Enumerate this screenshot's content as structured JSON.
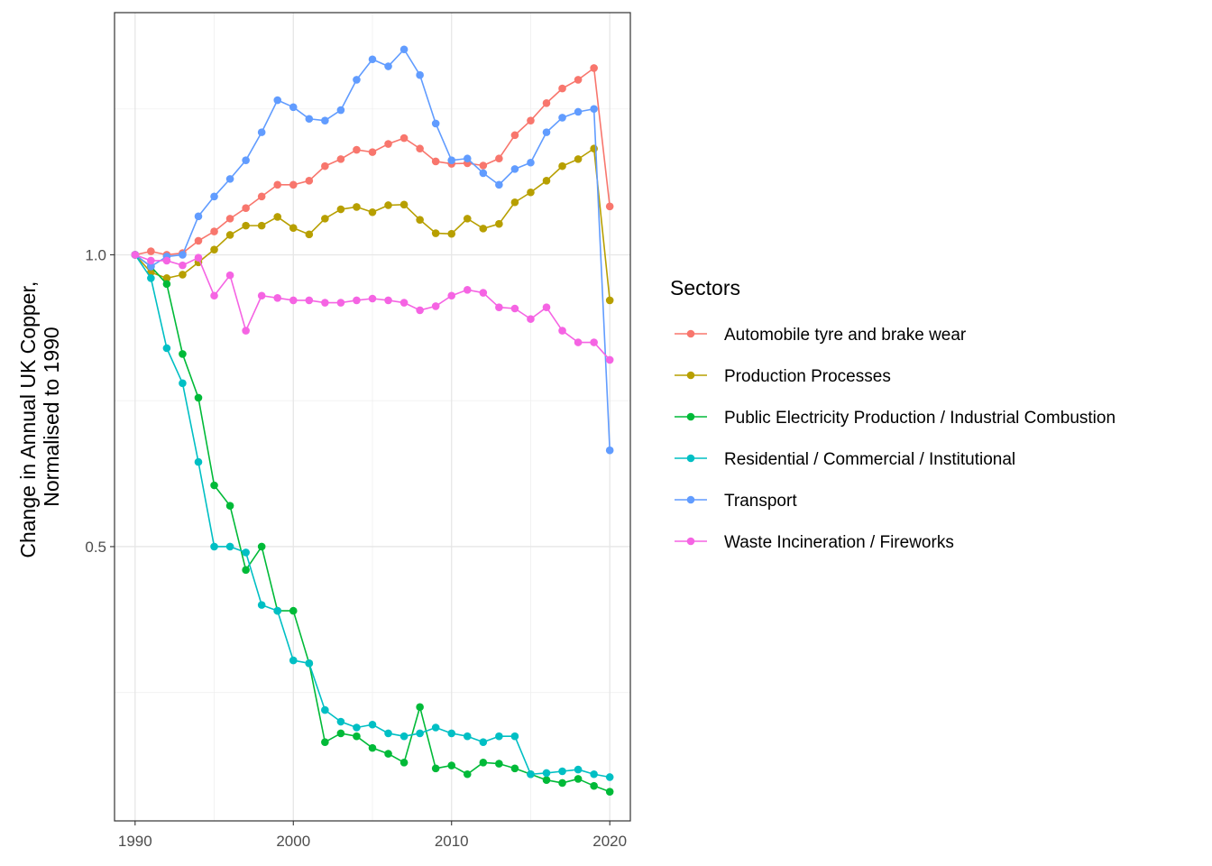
{
  "chart_data": {
    "type": "line",
    "title": "",
    "xlabel": "",
    "ylabel_lines": [
      "Change in Annual UK Copper,",
      "Normalised to 1990"
    ],
    "xlim": [
      1988.7,
      2021.3
    ],
    "ylim": [
      0.03,
      1.415
    ],
    "x_ticks": [
      1990,
      2000,
      2010,
      2020
    ],
    "x_tick_labels": [
      "1990",
      "2000",
      "2010",
      "2020"
    ],
    "y_ticks": [
      0.5,
      1.0
    ],
    "y_tick_labels": [
      "0.5",
      "1.0"
    ],
    "grid": true,
    "legend_title": "Sectors",
    "legend_position": "right",
    "x": [
      1990,
      1991,
      1992,
      1993,
      1994,
      1995,
      1996,
      1997,
      1998,
      1999,
      2000,
      2001,
      2002,
      2003,
      2004,
      2005,
      2006,
      2007,
      2008,
      2009,
      2010,
      2011,
      2012,
      2013,
      2014,
      2015,
      2016,
      2017,
      2018,
      2019,
      2020
    ],
    "series": [
      {
        "name": "Automobile tyre and brake wear",
        "color": "#F8766D",
        "values": [
          1.0,
          1.006,
          1.0,
          1.003,
          1.024,
          1.04,
          1.062,
          1.08,
          1.1,
          1.12,
          1.12,
          1.127,
          1.152,
          1.164,
          1.18,
          1.176,
          1.19,
          1.2,
          1.182,
          1.16,
          1.156,
          1.157,
          1.153,
          1.165,
          1.205,
          1.23,
          1.26,
          1.285,
          1.3,
          1.32,
          1.083
        ]
      },
      {
        "name": "Production Processes",
        "color": "#B79F00",
        "values": [
          1.0,
          0.97,
          0.96,
          0.966,
          0.987,
          1.009,
          1.034,
          1.05,
          1.05,
          1.065,
          1.046,
          1.035,
          1.062,
          1.078,
          1.082,
          1.073,
          1.085,
          1.086,
          1.06,
          1.037,
          1.036,
          1.062,
          1.045,
          1.053,
          1.09,
          1.107,
          1.127,
          1.152,
          1.164,
          1.182,
          0.922
        ]
      },
      {
        "name": "Public Electricity Production / Industrial Combustion",
        "color": "#00BA38",
        "values": [
          1.0,
          0.98,
          0.95,
          0.83,
          0.755,
          0.605,
          0.57,
          0.46,
          0.5,
          0.39,
          0.39,
          0.3,
          0.165,
          0.18,
          0.175,
          0.155,
          0.145,
          0.13,
          0.225,
          0.12,
          0.125,
          0.11,
          0.13,
          0.128,
          0.12,
          0.11,
          0.1,
          0.095,
          0.102,
          0.09,
          0.08
        ]
      },
      {
        "name": "Residential / Commercial / Institutional",
        "color": "#00BFC4",
        "values": [
          1.0,
          0.96,
          0.84,
          0.78,
          0.645,
          0.5,
          0.5,
          0.49,
          0.4,
          0.39,
          0.305,
          0.3,
          0.22,
          0.2,
          0.19,
          0.195,
          0.18,
          0.175,
          0.18,
          0.19,
          0.18,
          0.175,
          0.165,
          0.175,
          0.175,
          0.11,
          0.112,
          0.115,
          0.118,
          0.11,
          0.105
        ]
      },
      {
        "name": "Transport",
        "color": "#619CFF",
        "values": [
          1.0,
          0.98,
          0.997,
          1.0,
          1.066,
          1.1,
          1.13,
          1.162,
          1.21,
          1.265,
          1.253,
          1.233,
          1.23,
          1.248,
          1.3,
          1.335,
          1.323,
          1.352,
          1.308,
          1.225,
          1.162,
          1.165,
          1.14,
          1.12,
          1.147,
          1.158,
          1.21,
          1.235,
          1.245,
          1.25,
          0.665
        ]
      },
      {
        "name": "Waste Incineration / Fireworks",
        "color": "#F564E3",
        "values": [
          1.0,
          0.99,
          0.99,
          0.982,
          0.995,
          0.93,
          0.965,
          0.87,
          0.93,
          0.926,
          0.922,
          0.922,
          0.918,
          0.918,
          0.922,
          0.925,
          0.922,
          0.918,
          0.905,
          0.912,
          0.93,
          0.94,
          0.935,
          0.91,
          0.908,
          0.89,
          0.91,
          0.87,
          0.85,
          0.85,
          0.82
        ]
      }
    ]
  }
}
